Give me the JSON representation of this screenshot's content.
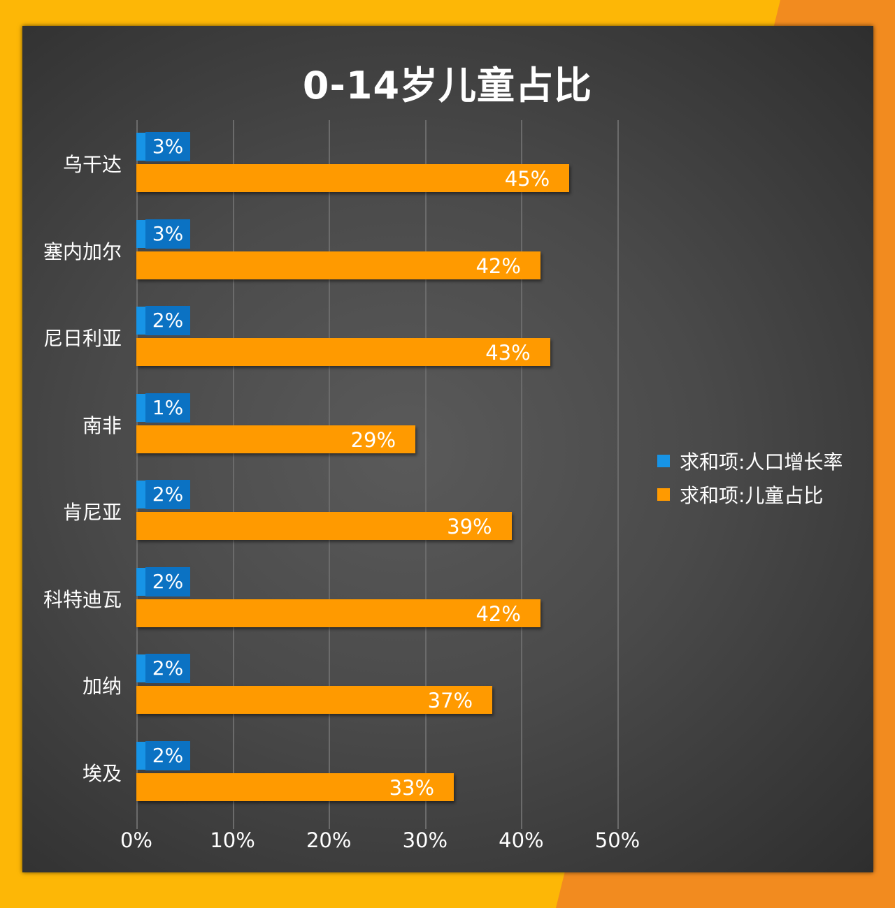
{
  "chart_data": {
    "type": "bar",
    "orientation": "horizontal",
    "title": "0-14岁儿童占比",
    "categories": [
      "乌干达",
      "塞内加尔",
      "尼日利亚",
      "南非",
      "肯尼亚",
      "科特迪瓦",
      "加纳",
      "埃及"
    ],
    "series": [
      {
        "name": "求和项:人口增长率",
        "color": "#1794E6",
        "values": [
          3,
          3,
          2,
          1,
          2,
          2,
          2,
          2
        ],
        "labels": [
          "3%",
          "3%",
          "2%",
          "1%",
          "2%",
          "2%",
          "2%",
          "2%"
        ]
      },
      {
        "name": "求和项:儿童占比",
        "color": "#FF9A00",
        "values": [
          45,
          42,
          43,
          29,
          39,
          42,
          37,
          33
        ],
        "labels": [
          "45%",
          "42%",
          "43%",
          "29%",
          "39%",
          "42%",
          "37%",
          "33%"
        ]
      }
    ],
    "xlabel": "",
    "ylabel": "",
    "xlim": [
      0,
      50
    ],
    "xticks": [
      "0%",
      "10%",
      "20%",
      "30%",
      "40%",
      "50%"
    ],
    "grid": true,
    "legend_position": "right"
  },
  "colors": {
    "background_yellow": "#FDB706",
    "background_orange": "#F28B1F",
    "panel": "#474747",
    "blue": "#1794E6",
    "blue_label": "#0B72C3",
    "orange": "#FF9A00"
  }
}
